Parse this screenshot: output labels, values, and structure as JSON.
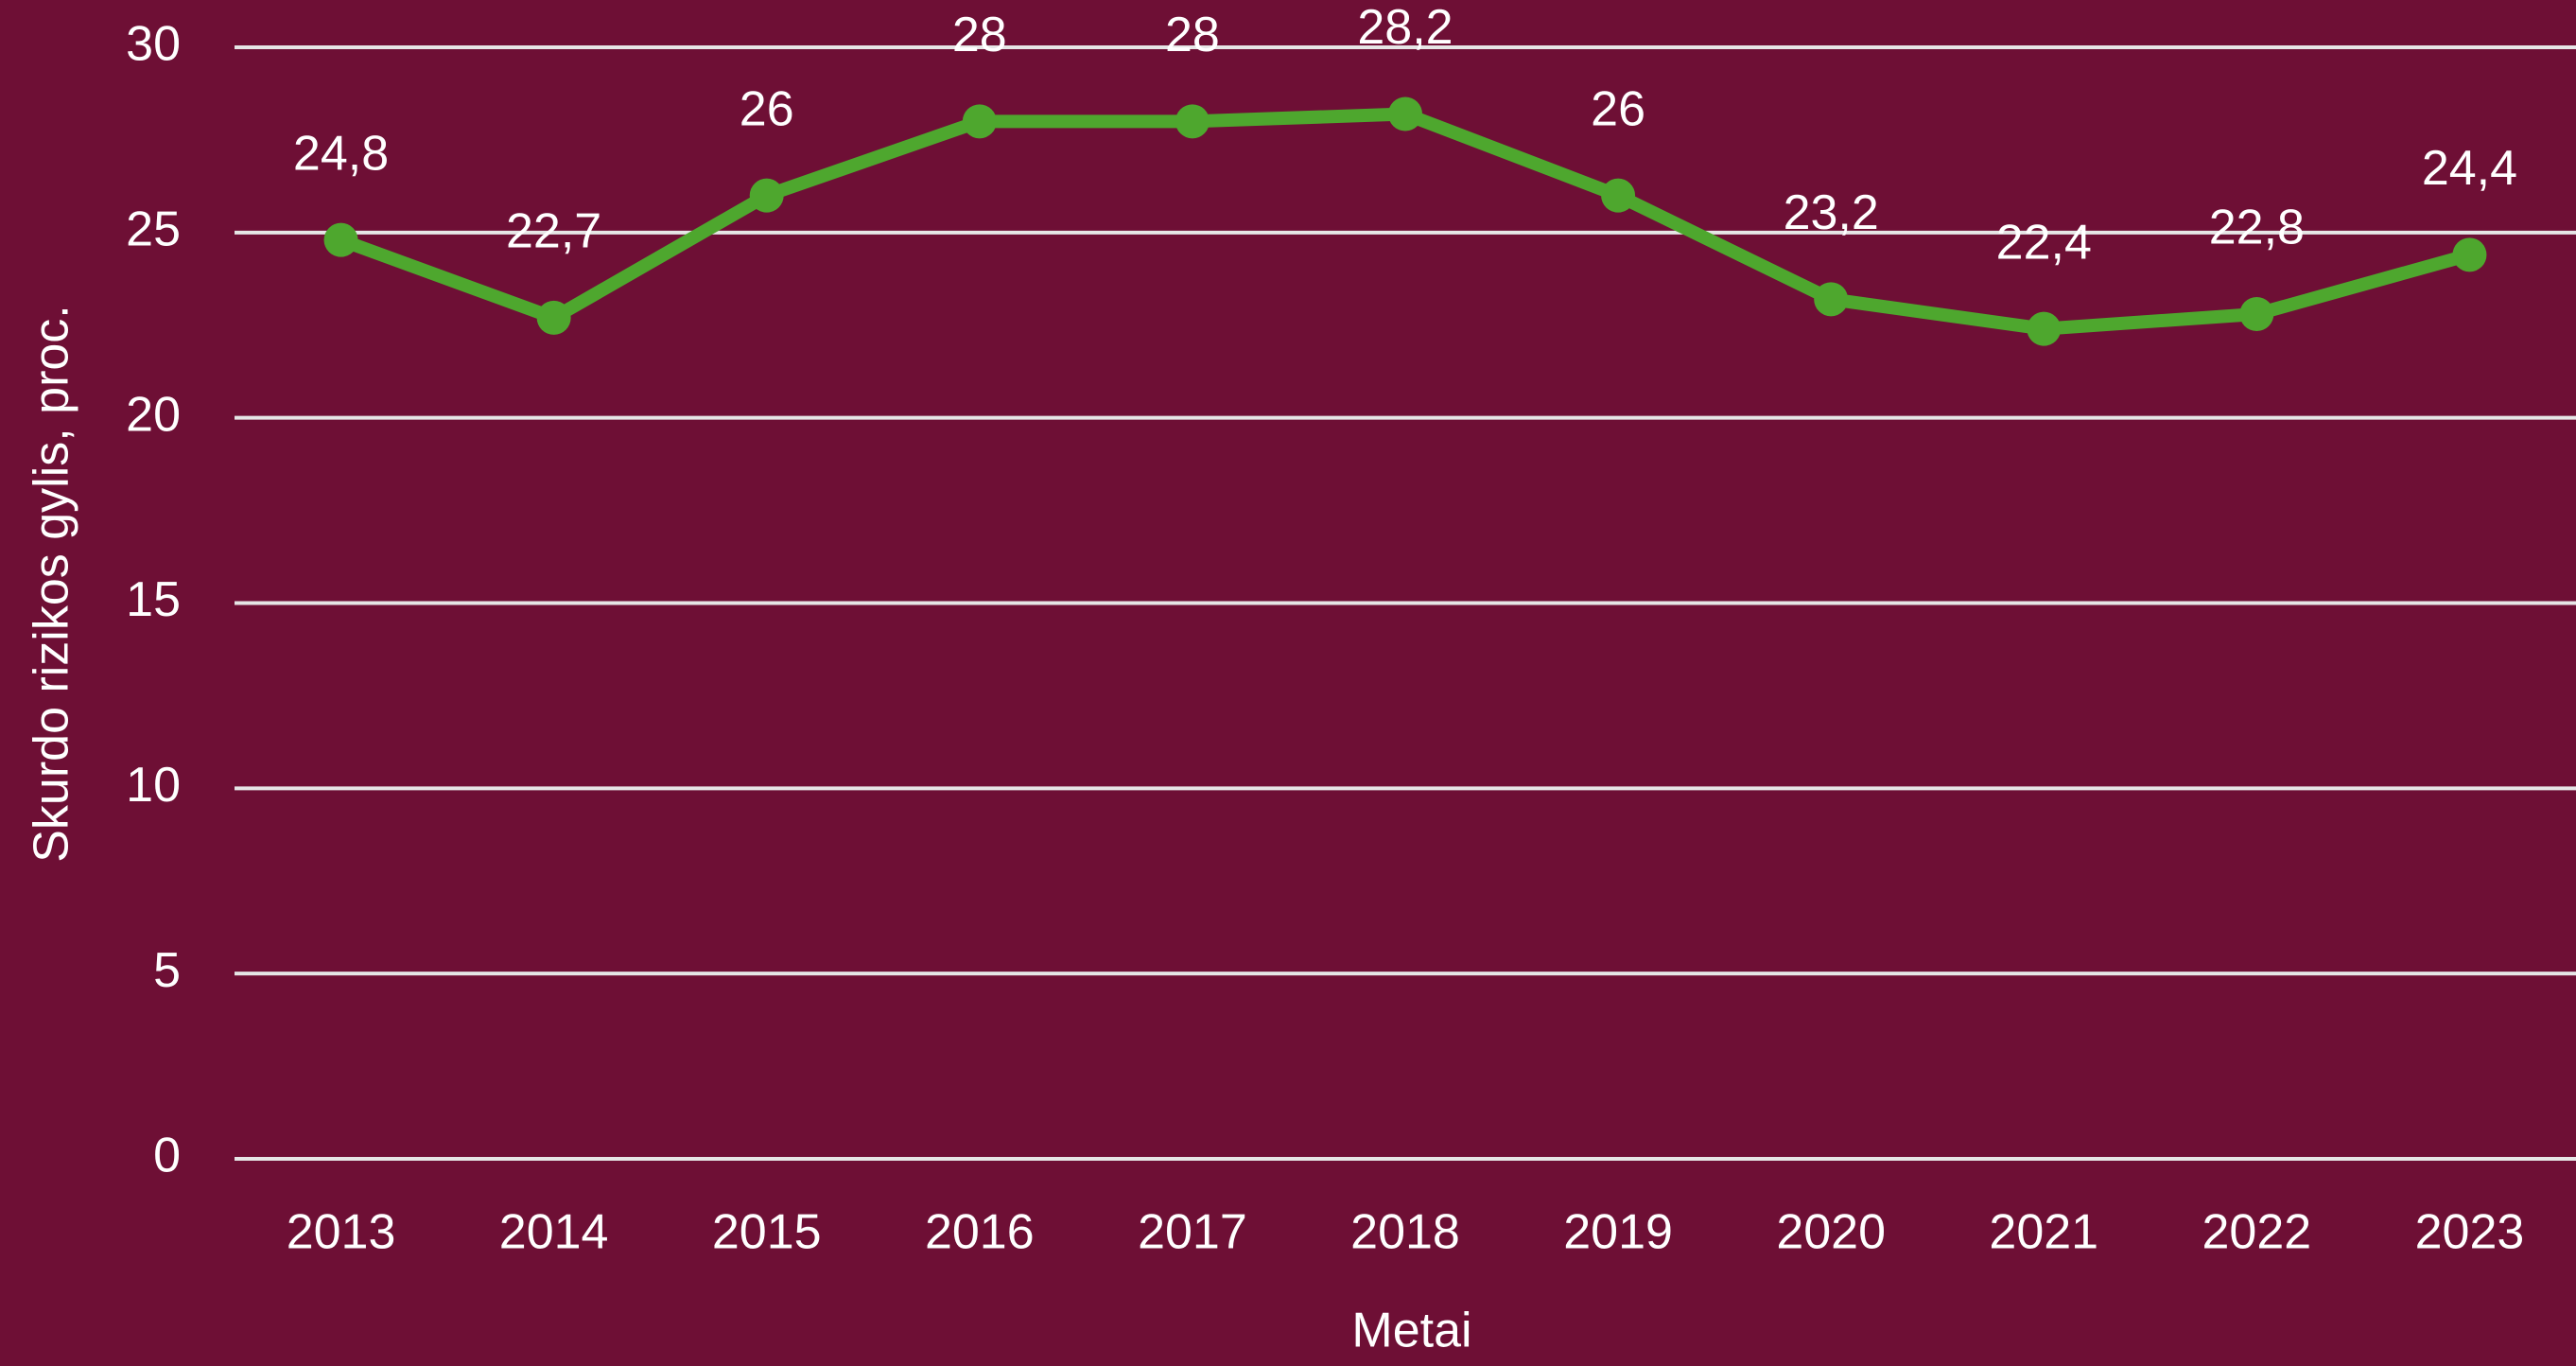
{
  "chart_data": {
    "type": "line",
    "xlabel": "Metai",
    "ylabel": "Skurdo rizikos gylis, proc.",
    "categories": [
      "2013",
      "2014",
      "2015",
      "2016",
      "2017",
      "2018",
      "2019",
      "2020",
      "2021",
      "2022",
      "2023"
    ],
    "values": [
      24.8,
      22.7,
      26,
      28,
      28,
      28.2,
      26,
      23.2,
      22.4,
      22.8,
      24.4
    ],
    "value_labels": [
      "24,8",
      "22,7",
      "26",
      "28",
      "28",
      "28,2",
      "26",
      "23,2",
      "22,4",
      "22,8",
      "24,4"
    ],
    "color": "#4ea72e",
    "ylim": [
      0,
      30
    ],
    "yticks": [
      0,
      5,
      10,
      15,
      20,
      25,
      30
    ],
    "grid": true
  }
}
